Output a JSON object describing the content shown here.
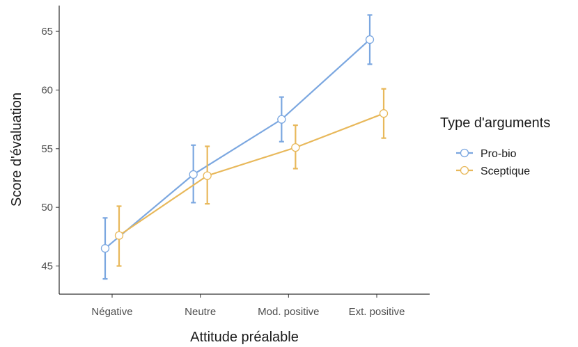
{
  "chart_data": {
    "type": "line",
    "xlabel": "Attitude préalable",
    "ylabel": "Score d'évaluation",
    "categories": [
      "Négative",
      "Neutre",
      "Mod. positive",
      "Ext. positive"
    ],
    "ylim": [
      42.6,
      67.2
    ],
    "yticks": [
      45,
      50,
      55,
      60,
      65
    ],
    "grid": false,
    "legend": {
      "title": "Type d'arguments",
      "placement": "right"
    },
    "series": [
      {
        "name": "Pro-bio",
        "color": "#7ba7e0",
        "values": [
          46.5,
          52.8,
          57.5,
          64.3
        ],
        "lower": [
          43.9,
          50.4,
          55.6,
          62.2
        ],
        "upper": [
          49.1,
          55.3,
          59.4,
          66.4
        ]
      },
      {
        "name": "Sceptique",
        "color": "#e8b85a",
        "values": [
          47.6,
          52.7,
          55.1,
          58.0
        ],
        "lower": [
          45.0,
          50.3,
          53.3,
          55.9
        ],
        "upper": [
          50.1,
          55.2,
          57.0,
          60.1
        ]
      }
    ]
  }
}
